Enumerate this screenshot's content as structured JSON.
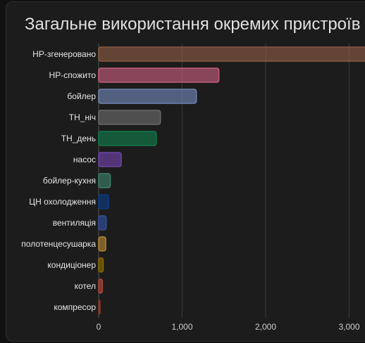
{
  "card": {
    "title": "Загальне використання окремих пристроїв"
  },
  "chart_data": {
    "type": "bar",
    "orientation": "horizontal",
    "title": "Загальне використання окремих пристроїв",
    "xlabel": "",
    "ylabel": "",
    "xlim": [
      0,
      3200
    ],
    "x_ticks": [
      0,
      1000,
      2000,
      3000
    ],
    "x_tick_labels": [
      "0",
      "1,000",
      "2,000",
      "3,000"
    ],
    "grid": true,
    "categories": [
      "НР-згенеровано",
      "НР-спожито",
      "бойлер",
      "ТН_ніч",
      "ТН_день",
      "насос",
      "бойлер-кухня",
      "ЦН охолодження",
      "вентиляція",
      "полотенцесушарка",
      "кондиціонер",
      "котел",
      "компресор"
    ],
    "values": [
      3250,
      1440,
      1170,
      740,
      690,
      270,
      140,
      120,
      90,
      85,
      55,
      45,
      15
    ],
    "colors": [
      "#8a5a44",
      "#c45e7c",
      "#7084b4",
      "#6b6b6b",
      "#137a4c",
      "#7044a8",
      "#3d8068",
      "#0f3a82",
      "#33509e",
      "#b08634",
      "#8c6b00",
      "#b2473d",
      "#8c3a2b"
    ]
  }
}
